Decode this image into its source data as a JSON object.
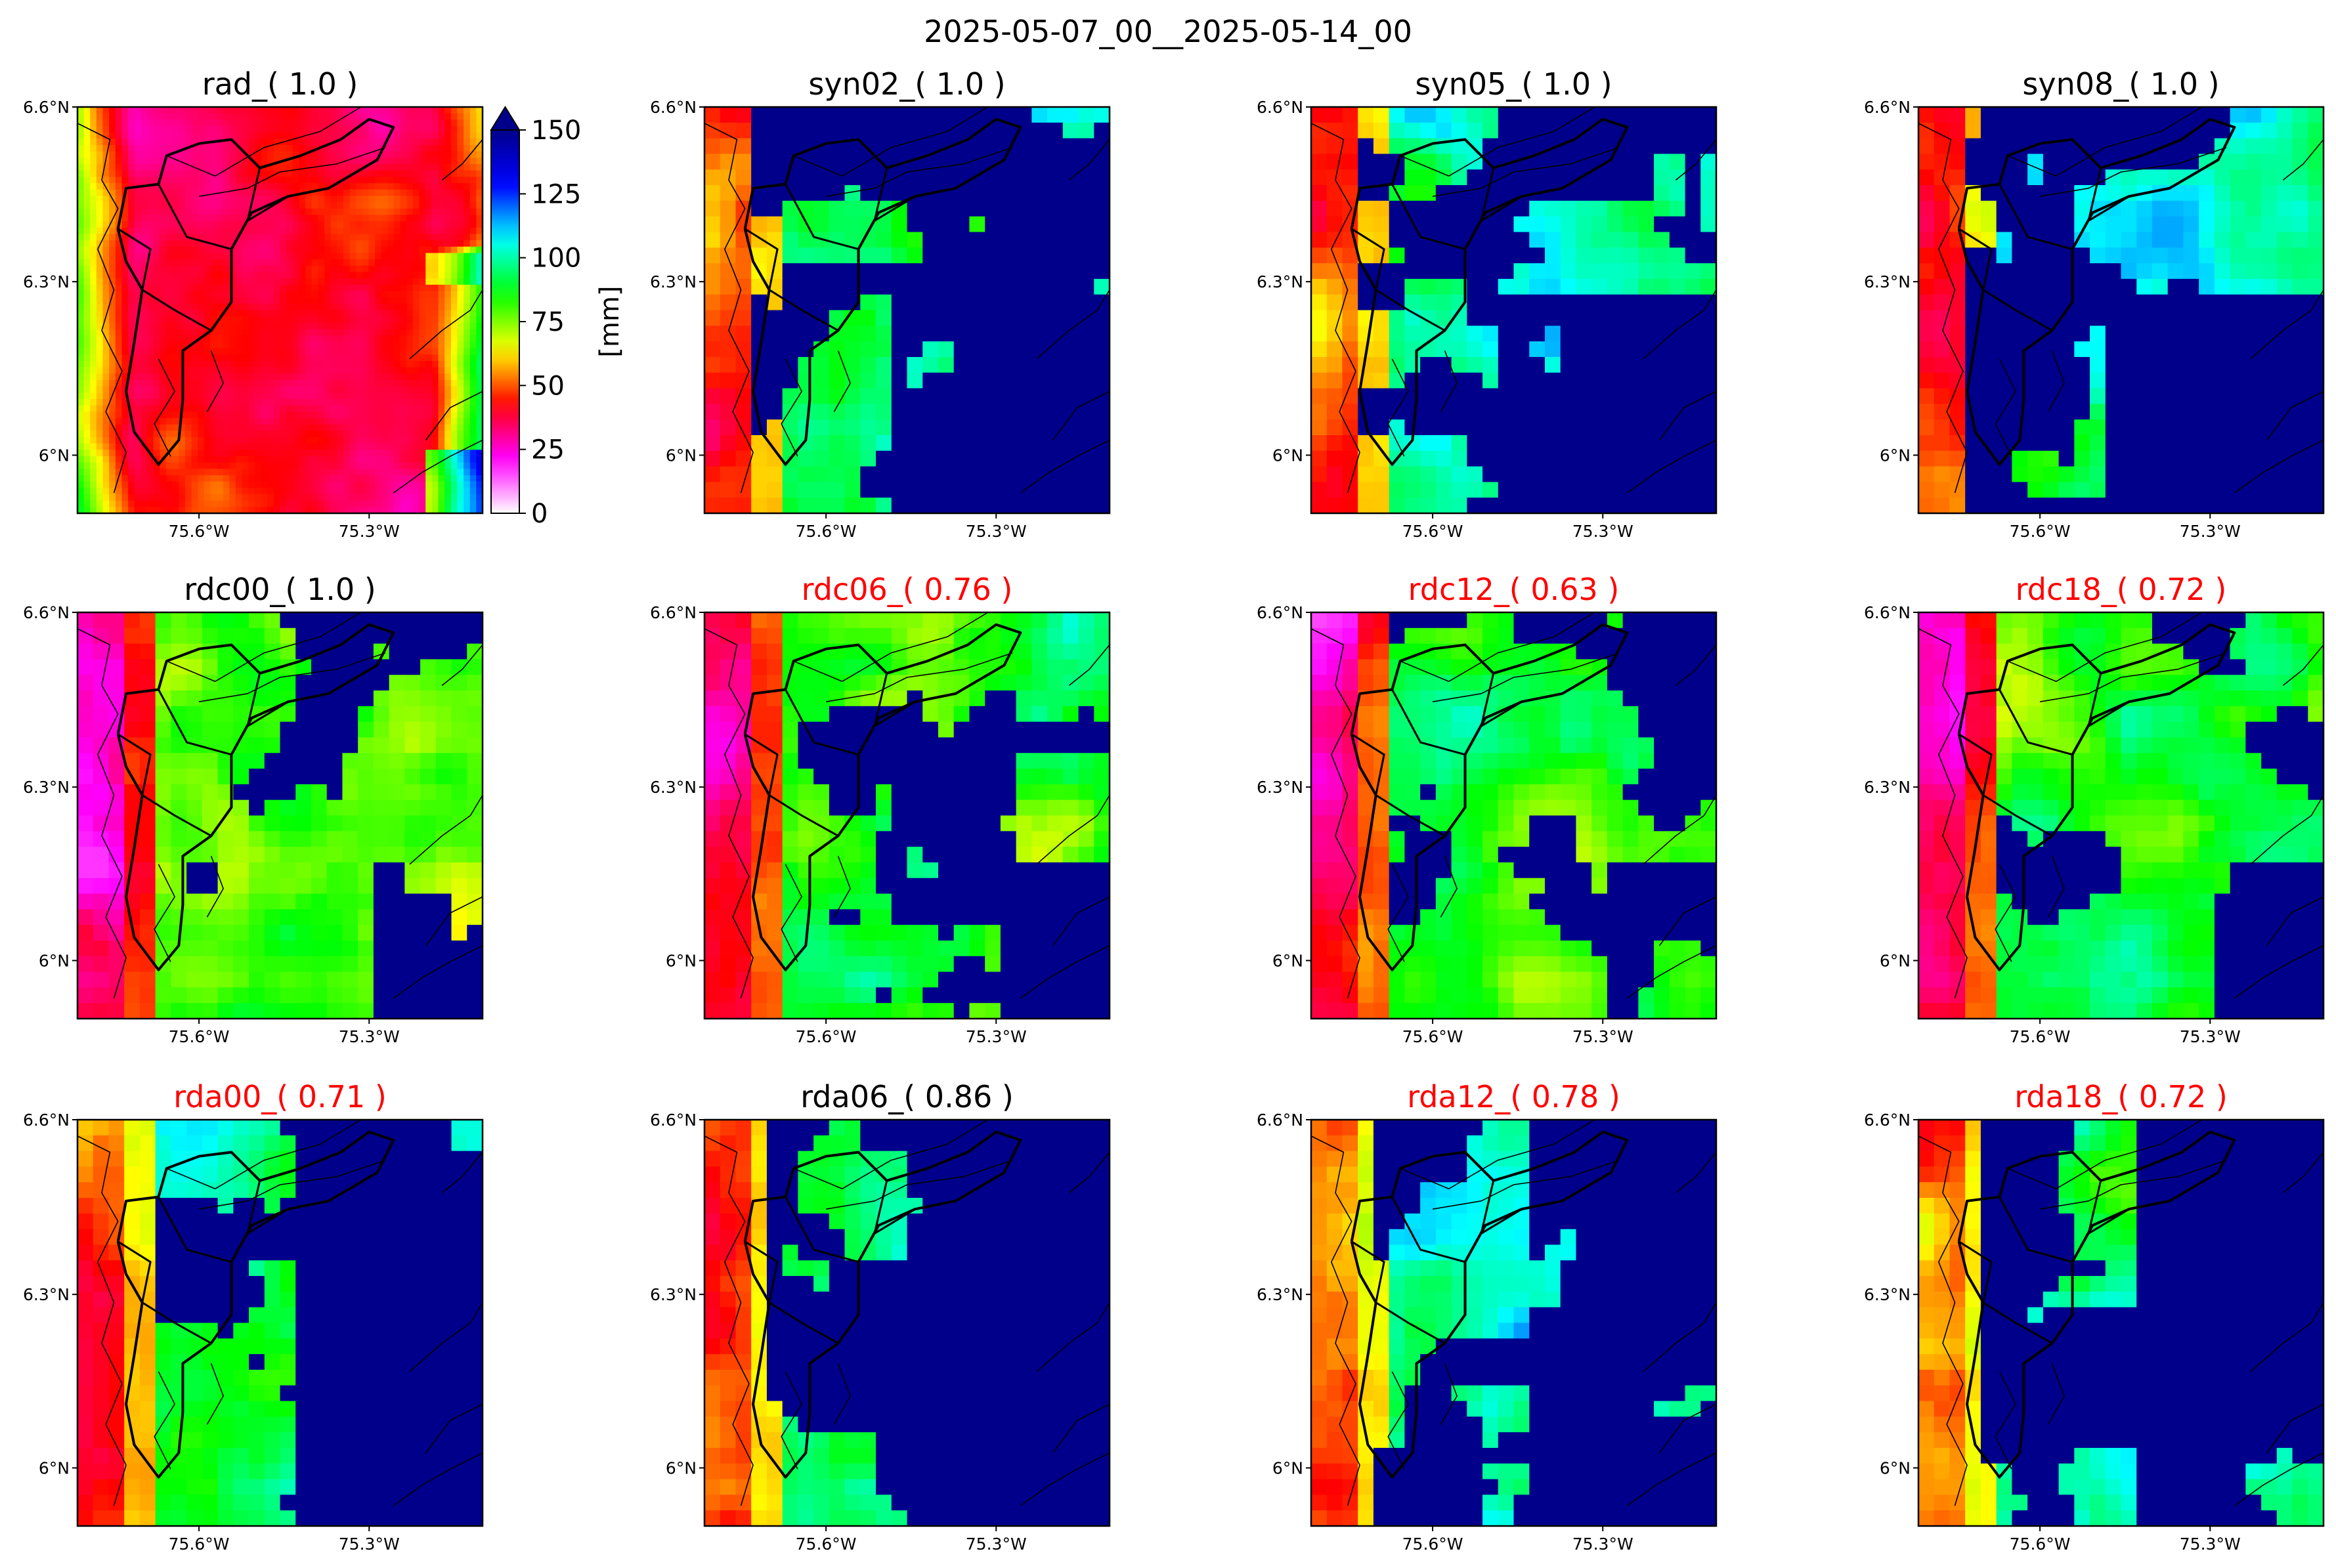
{
  "figure_title": "2025-05-07_00__2025-05-14_00",
  "colors": {
    "title_default": "#000000",
    "title_flagged": "#ff0000",
    "ocean_mask": "#00008b",
    "boundary": "#000000"
  },
  "colormap": [
    "#ffffff",
    "#ff00ff",
    "#ff0000",
    "#ffff00",
    "#00ff00",
    "#00ffff",
    "#0000ff",
    "#00008b"
  ],
  "chart_data": {
    "type": "heatmap",
    "description_units": "[mm]",
    "colorbar": {
      "label": "[mm]",
      "ticks": [
        "0",
        "25",
        "50",
        "75",
        "100",
        "125",
        "150"
      ],
      "range": [
        0,
        150
      ],
      "extend": "max"
    },
    "xtick_labels": [
      "75.6°W",
      "75.3°W"
    ],
    "ytick_labels": [
      "6.6°N",
      "6.3°N",
      "6°N"
    ],
    "x_range_deg": [
      -75.8,
      -75.1
    ],
    "y_range_deg": [
      5.9,
      6.6
    ],
    "panels": [
      {
        "title": "rad_( 1.0 )",
        "color": "#000000",
        "source": "radar"
      },
      {
        "title": "syn02_( 1.0 )",
        "color": "#000000",
        "source": "syn"
      },
      {
        "title": "syn05_( 1.0 )",
        "color": "#000000",
        "source": "syn"
      },
      {
        "title": "syn08_( 1.0 )",
        "color": "#000000",
        "source": "syn"
      },
      {
        "title": "rdc00_( 1.0 )",
        "color": "#000000",
        "source": "rdc"
      },
      {
        "title": "rdc06_( 0.76 )",
        "color": "#ff0000",
        "source": "rdc"
      },
      {
        "title": "rdc12_( 0.63 )",
        "color": "#ff0000",
        "source": "rdc"
      },
      {
        "title": "rdc18_( 0.72 )",
        "color": "#ff0000",
        "source": "rdc"
      },
      {
        "title": "rda00_( 0.71 )",
        "color": "#ff0000",
        "source": "rda"
      },
      {
        "title": "rda06_( 0.86 )",
        "color": "#000000",
        "source": "rda"
      },
      {
        "title": "rda12_( 0.78 )",
        "color": "#ff0000",
        "source": "rda"
      },
      {
        "title": "rda18_( 0.72 )",
        "color": "#ff0000",
        "source": "rda"
      }
    ]
  }
}
